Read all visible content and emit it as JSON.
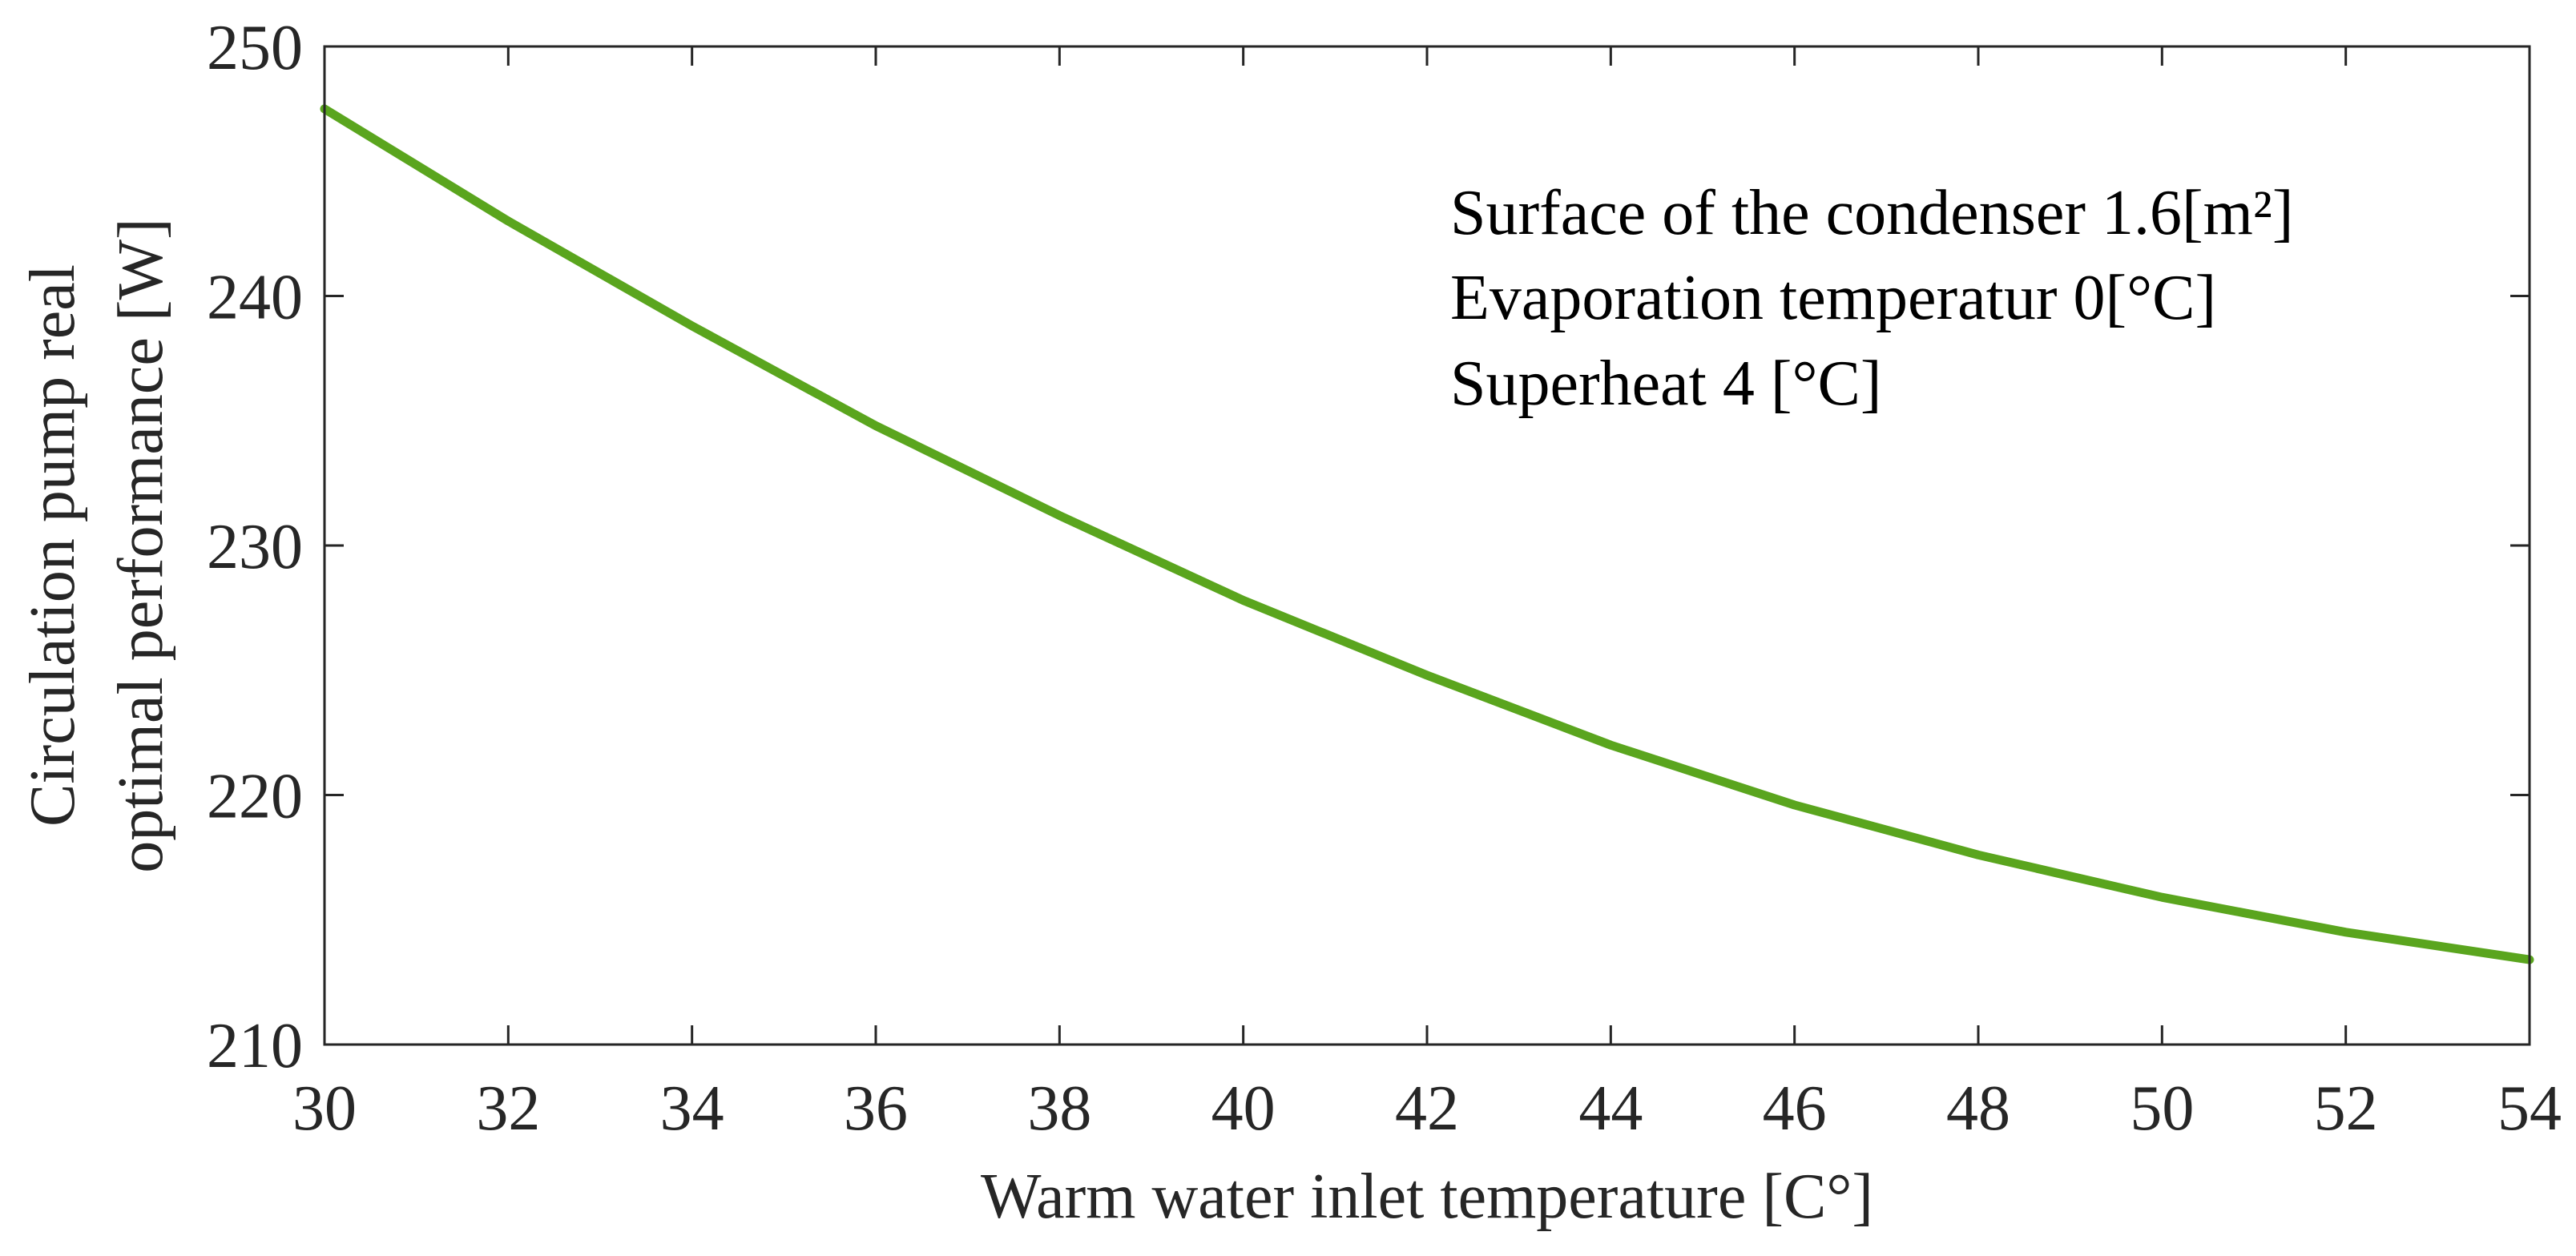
{
  "chart_data": {
    "type": "line",
    "title": "",
    "xlabel": "Warm water inlet temperature [C°]",
    "ylabel_lines": [
      "Circulation pump real",
      "optimal performance [W]"
    ],
    "xlim": [
      30,
      54
    ],
    "ylim": [
      210,
      250
    ],
    "xticks": [
      30,
      32,
      34,
      36,
      38,
      40,
      42,
      44,
      46,
      48,
      50,
      52,
      54
    ],
    "yticks": [
      210,
      220,
      230,
      240,
      250
    ],
    "grid": false,
    "series": [
      {
        "name": "Circulation pump real optimal performance",
        "color": "#5aa51e",
        "x": [
          30,
          32,
          34,
          36,
          38,
          40,
          42,
          44,
          46,
          48,
          50,
          52,
          54
        ],
        "y": [
          247.5,
          243.0,
          238.8,
          234.8,
          231.2,
          227.8,
          224.8,
          222.0,
          219.6,
          217.6,
          215.9,
          214.5,
          213.4
        ]
      }
    ],
    "annotations": [
      "Surface of the condenser 1.6[m²]",
      "Evaporation temperatur 0[°C]",
      "Superheat 4 [°C]"
    ]
  }
}
